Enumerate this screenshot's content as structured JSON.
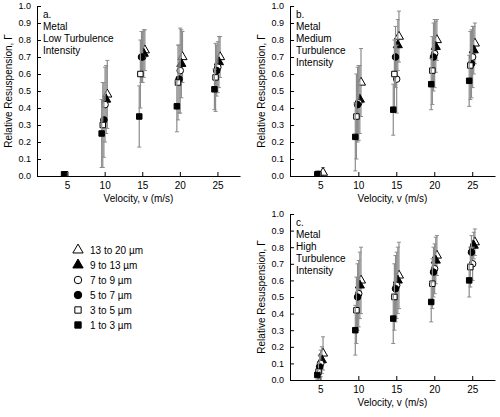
{
  "chart_data": [
    {
      "type": "scatter",
      "annotations": [
        "a.",
        "Metal",
        "Low Turbulence",
        "Intensity"
      ],
      "x_label": "Velocity, v (m/s)",
      "y_label": "Relative Resuspension, Γ",
      "xlim": [
        1,
        28
      ],
      "xticks": [
        5,
        10,
        15,
        20,
        25
      ],
      "ylim": [
        0,
        1.0
      ],
      "yticks": [
        {
          "value": 0,
          "label": "0.0"
        },
        {
          "value": 0.1,
          "label": "0.1"
        },
        {
          "value": 0.2,
          "label": "0.2"
        },
        {
          "value": 0.3,
          "label": "0.3"
        },
        {
          "value": 0.4,
          "label": "0.4"
        },
        {
          "value": 0.5,
          "label": "0.5"
        },
        {
          "value": 0.6,
          "label": "0.6"
        },
        {
          "value": 0.7,
          "label": "0.7"
        },
        {
          "value": 0.8,
          "label": "0.8"
        },
        {
          "value": 0.9,
          "label": "0.9"
        },
        {
          "value": 1.0,
          "label": "1.0"
        }
      ],
      "legend": "below",
      "series": [
        {
          "name": "13 to 20 µm",
          "marker": "triangle-open",
          "color": "#000000",
          "x": [
            5.35,
            10.35,
            15.35,
            20.35,
            25.35
          ],
          "values": [
            null,
            0.48,
            0.74,
            0.7,
            0.7
          ],
          "errors": [
            null,
            0.2,
            0.12,
            0.15,
            0.12
          ]
        },
        {
          "name": "9 to 13 µm",
          "marker": "triangle",
          "color": "#000000",
          "x": [
            5.2,
            10.2,
            15.2,
            20.2,
            25.2
          ],
          "values": [
            null,
            0.45,
            0.72,
            0.66,
            0.67
          ],
          "errors": [
            null,
            0.2,
            0.14,
            0.2,
            0.15
          ]
        },
        {
          "name": "7 to 9 µm",
          "marker": "circle-open",
          "color": "#000000",
          "x": [
            5.05,
            10.05,
            15.05,
            20.05,
            25.05
          ],
          "values": [
            null,
            0.42,
            0.7,
            0.62,
            0.64
          ],
          "errors": [
            null,
            0.22,
            0.15,
            0.25,
            0.15
          ]
        },
        {
          "name": "5 to 7 µm",
          "marker": "circle",
          "color": "#000000",
          "x": [
            4.9,
            9.9,
            14.9,
            19.9,
            24.9
          ],
          "values": [
            null,
            0.33,
            0.7,
            0.57,
            0.62
          ],
          "errors": [
            null,
            0.22,
            0.15,
            0.2,
            0.15
          ]
        },
        {
          "name": "3 to 5 µm",
          "marker": "square-open",
          "color": "#000000",
          "x": [
            4.75,
            9.75,
            14.75,
            19.75,
            24.75
          ],
          "values": [
            0.01,
            0.3,
            0.6,
            0.55,
            0.58
          ],
          "errors": [
            0.01,
            0.25,
            0.2,
            0.22,
            0.2
          ]
        },
        {
          "name": "1 to 3 µm",
          "marker": "square",
          "color": "#000000",
          "x": [
            4.6,
            9.6,
            14.6,
            19.6,
            24.6
          ],
          "values": [
            0.01,
            0.25,
            0.35,
            0.41,
            0.51
          ],
          "errors": [
            0.01,
            0.2,
            0.18,
            0.15,
            0.12
          ]
        }
      ]
    },
    {
      "type": "scatter",
      "annotations": [
        "b.",
        "Metal",
        "Medium",
        "Turbulence",
        "Intensity"
      ],
      "x_label": "Velocity, v (m/s)",
      "y_label": "Relative Resuspension, Γ",
      "xlim": [
        1,
        28
      ],
      "xticks": [
        5,
        10,
        15,
        20,
        25
      ],
      "ylim": [
        0,
        1.0
      ],
      "yticks": [
        {
          "value": 0,
          "label": "0.0"
        },
        {
          "value": 0.1,
          "label": "0.1"
        },
        {
          "value": 0.2,
          "label": "0.2"
        },
        {
          "value": 0.3,
          "label": "0.3"
        },
        {
          "value": 0.4,
          "label": "0.4"
        },
        {
          "value": 0.5,
          "label": "0.5"
        },
        {
          "value": 0.6,
          "label": "0.6"
        },
        {
          "value": 0.7,
          "label": "0.7"
        },
        {
          "value": 0.8,
          "label": "0.8"
        },
        {
          "value": 0.9,
          "label": "0.9"
        },
        {
          "value": 1.0,
          "label": "1.0"
        }
      ],
      "series": [
        {
          "name": "13 to 20 µm",
          "marker": "triangle-open",
          "color": "#000000",
          "x": [
            5.35,
            10.35,
            15.35,
            20.35,
            25.35
          ],
          "values": [
            0.02,
            0.55,
            0.82,
            0.8,
            0.78
          ],
          "errors": [
            0.03,
            0.2,
            0.15,
            0.12,
            0.12
          ]
        },
        {
          "name": "9 to 13 µm",
          "marker": "triangle",
          "color": "#000000",
          "x": [
            5.2,
            10.2,
            15.2,
            20.2,
            25.2
          ],
          "values": [
            null,
            0.45,
            0.77,
            0.76,
            0.74
          ],
          "errors": [
            null,
            0.2,
            0.15,
            0.15,
            0.14
          ]
        },
        {
          "name": "7 to 9 µm",
          "marker": "circle-open",
          "color": "#000000",
          "x": [
            5.05,
            10.05,
            15.05,
            20.05,
            25.05
          ],
          "values": [
            null,
            0.43,
            0.57,
            0.72,
            0.7
          ],
          "errors": [
            null,
            0.22,
            0.2,
            0.2,
            0.18
          ]
        },
        {
          "name": "5 to 7 µm",
          "marker": "circle",
          "color": "#000000",
          "x": [
            4.9,
            9.9,
            14.9,
            19.9,
            24.9
          ],
          "values": [
            null,
            0.42,
            0.7,
            0.7,
            0.66
          ],
          "errors": [
            null,
            0.22,
            0.18,
            0.2,
            0.2
          ]
        },
        {
          "name": "3 to 5 µm",
          "marker": "square-open",
          "color": "#000000",
          "x": [
            4.75,
            9.75,
            14.75,
            19.75,
            24.75
          ],
          "values": [
            0.01,
            0.35,
            0.6,
            0.62,
            0.65
          ],
          "errors": [
            0.02,
            0.25,
            0.2,
            0.2,
            0.2
          ]
        },
        {
          "name": "1 to 3 µm",
          "marker": "square",
          "color": "#000000",
          "x": [
            4.6,
            9.6,
            14.6,
            19.6,
            24.6
          ],
          "values": [
            0.01,
            0.23,
            0.39,
            0.54,
            0.56
          ],
          "errors": [
            0.02,
            0.2,
            0.15,
            0.15,
            0.15
          ]
        }
      ]
    },
    {
      "type": "scatter",
      "annotations": [
        "c.",
        "Metal",
        "High",
        "Turbulence",
        "Intensity"
      ],
      "x_label": "Velocity, v (m/s)",
      "y_label": "Relative Resuspension, Γ",
      "xlim": [
        1,
        28
      ],
      "xticks": [
        5,
        10,
        15,
        20,
        25
      ],
      "ylim": [
        0,
        1.0
      ],
      "yticks": [
        {
          "value": 0,
          "label": "0.0"
        },
        {
          "value": 0.1,
          "label": "0.1"
        },
        {
          "value": 0.2,
          "label": "0.2"
        },
        {
          "value": 0.3,
          "label": "0.3"
        },
        {
          "value": 0.4,
          "label": "0.4"
        },
        {
          "value": 0.5,
          "label": "0.5"
        },
        {
          "value": 0.6,
          "label": "0.6"
        },
        {
          "value": 0.7,
          "label": "0.7"
        },
        {
          "value": 0.8,
          "label": "0.8"
        },
        {
          "value": 0.9,
          "label": "0.9"
        },
        {
          "value": 1.0,
          "label": "1.0"
        }
      ],
      "series": [
        {
          "name": "13 to 20 µm",
          "marker": "triangle-open",
          "color": "#000000",
          "x": [
            5.35,
            10.35,
            15.35,
            20.35,
            25.35
          ],
          "values": [
            0.16,
            0.6,
            0.63,
            0.75,
            0.83
          ],
          "errors": [
            0.1,
            0.2,
            0.2,
            0.12,
            0.08
          ]
        },
        {
          "name": "9 to 13 µm",
          "marker": "triangle",
          "color": "#000000",
          "x": [
            5.2,
            10.2,
            15.2,
            20.2,
            25.2
          ],
          "values": [
            0.12,
            0.57,
            0.6,
            0.72,
            0.81
          ],
          "errors": [
            0.08,
            0.2,
            0.2,
            0.14,
            0.08
          ]
        },
        {
          "name": "7 to 9 µm",
          "marker": "circle-open",
          "color": "#000000",
          "x": [
            5.05,
            10.05,
            15.05,
            20.05,
            25.05
          ],
          "values": [
            0.1,
            0.52,
            0.57,
            0.67,
            0.7
          ],
          "errors": [
            0.08,
            0.2,
            0.2,
            0.15,
            0.1
          ]
        },
        {
          "name": "5 to 7 µm",
          "marker": "circle",
          "color": "#000000",
          "x": [
            4.9,
            9.9,
            14.9,
            19.9,
            24.9
          ],
          "values": [
            0.08,
            0.5,
            0.55,
            0.65,
            0.77
          ],
          "errors": [
            0.07,
            0.2,
            0.2,
            0.15,
            0.1
          ]
        },
        {
          "name": "3 to 5 µm",
          "marker": "square-open",
          "color": "#000000",
          "x": [
            4.75,
            9.75,
            14.75,
            19.75,
            24.75
          ],
          "values": [
            0.05,
            0.42,
            0.5,
            0.58,
            0.68
          ],
          "errors": [
            0.05,
            0.2,
            0.2,
            0.15,
            0.12
          ]
        },
        {
          "name": "1 to 3 µm",
          "marker": "square",
          "color": "#000000",
          "x": [
            4.6,
            9.6,
            14.6,
            19.6,
            24.6
          ],
          "values": [
            0.03,
            0.3,
            0.37,
            0.47,
            0.6
          ],
          "errors": [
            0.03,
            0.15,
            0.15,
            0.12,
            0.1
          ]
        }
      ]
    }
  ]
}
